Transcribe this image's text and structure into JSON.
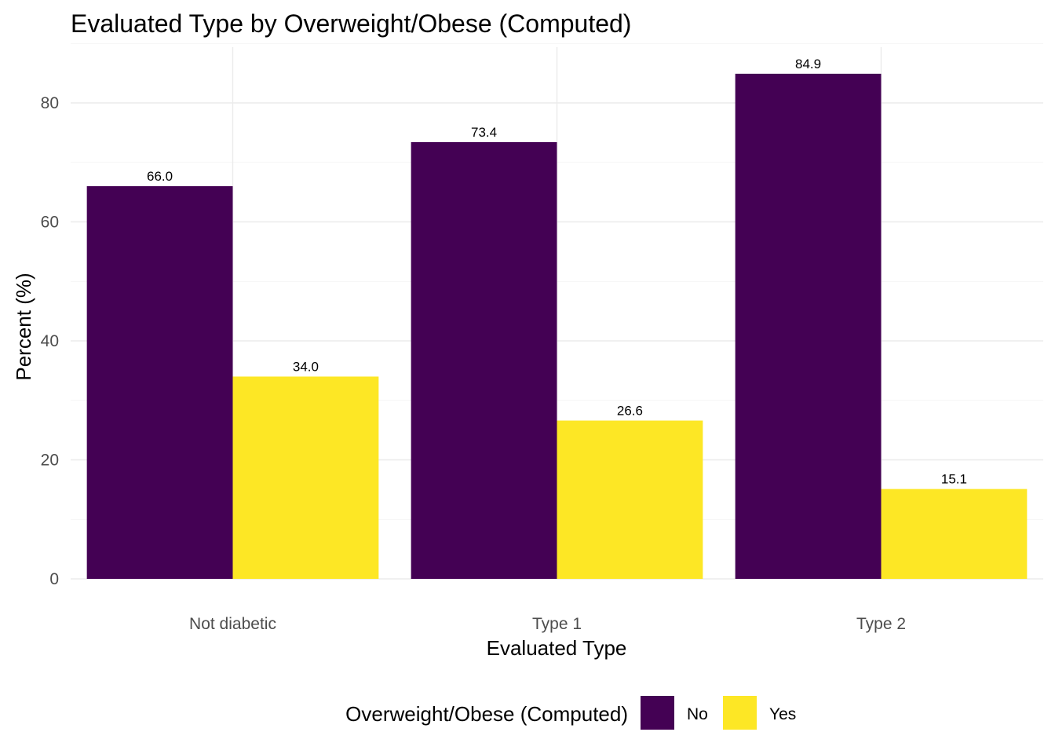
{
  "chart_data": {
    "type": "bar",
    "title": "Evaluated Type by Overweight/Obese (Computed)",
    "xlabel": "Evaluated Type",
    "ylabel": "Percent (%)",
    "categories": [
      "Not diabetic",
      "Type 1",
      "Type 2"
    ],
    "series": [
      {
        "name": "No",
        "color": "#440154",
        "values": [
          66.0,
          73.4,
          84.9
        ],
        "labels": [
          "66.0",
          "73.4",
          "84.9"
        ]
      },
      {
        "name": "Yes",
        "color": "#FDE725",
        "values": [
          34.0,
          26.6,
          15.1
        ],
        "labels": [
          "34.0",
          "26.6",
          "15.1"
        ]
      }
    ],
    "ylim": [
      0,
      90
    ],
    "yticks": [
      0,
      20,
      40,
      60,
      80
    ],
    "grid": true,
    "legend": {
      "title": "Overweight/Obese (Computed)",
      "placement": "bottom"
    }
  }
}
